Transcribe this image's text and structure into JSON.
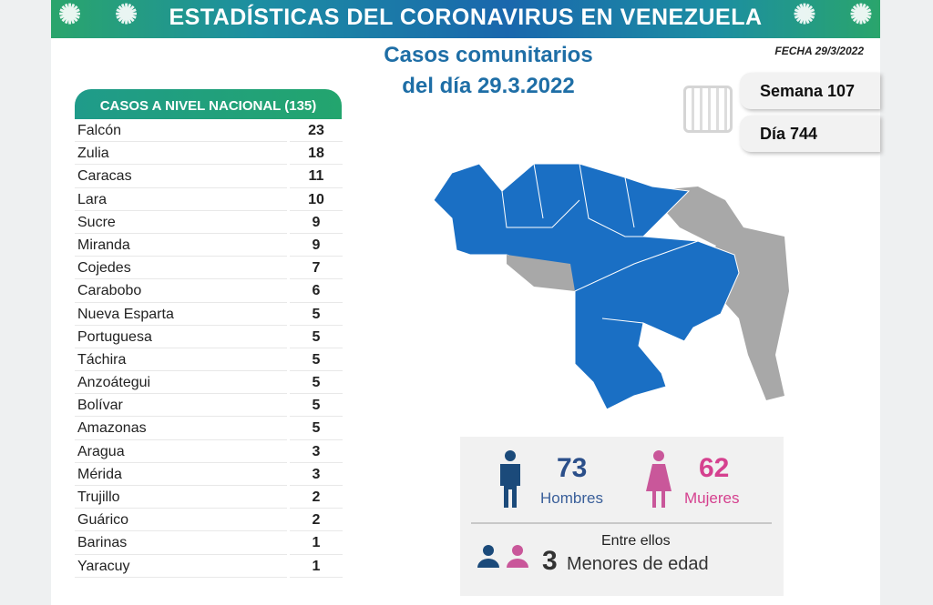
{
  "banner": {
    "title": "ESTADÍSTICAS DEL CORONAVIRUS EN VENEZUELA"
  },
  "heading": {
    "line1": "Casos comunitarios",
    "line2": "del día 29.3.2022"
  },
  "fecha": "FECHA 29/3/2022",
  "semana": "Semana 107",
  "dia": "Día 744",
  "table": {
    "header": "CASOS A NIVEL NACIONAL  (135)",
    "rows": [
      {
        "state": "Falcón",
        "cases": "23"
      },
      {
        "state": "Zulia",
        "cases": "18"
      },
      {
        "state": "Caracas",
        "cases": "11"
      },
      {
        "state": "Lara",
        "cases": "10"
      },
      {
        "state": "Sucre",
        "cases": "9"
      },
      {
        "state": "Miranda",
        "cases": "9"
      },
      {
        "state": "Cojedes",
        "cases": "7"
      },
      {
        "state": "Carabobo",
        "cases": "6"
      },
      {
        "state": "Nueva Esparta",
        "cases": "5"
      },
      {
        "state": "Portuguesa",
        "cases": "5"
      },
      {
        "state": "Táchira",
        "cases": "5"
      },
      {
        "state": "Anzoátegui",
        "cases": "5"
      },
      {
        "state": "Bolívar",
        "cases": "5"
      },
      {
        "state": "Amazonas",
        "cases": "5"
      },
      {
        "state": "Aragua",
        "cases": "3"
      },
      {
        "state": "Mérida",
        "cases": "3"
      },
      {
        "state": "Trujillo",
        "cases": "2"
      },
      {
        "state": "Guárico",
        "cases": "2"
      },
      {
        "state": "Barinas",
        "cases": "1"
      },
      {
        "state": "Yaracuy",
        "cases": "1"
      }
    ]
  },
  "stats": {
    "men": "73",
    "men_label": "Hombres",
    "women": "62",
    "women_label": "Mujeres",
    "among": "Entre ellos",
    "minors": "3",
    "minors_label": "Menores de edad"
  },
  "colors": {
    "men": "#1b4a7a",
    "women": "#d5418f",
    "map_blue": "#1a6fc4",
    "map_gray": "#a8a8a8"
  }
}
